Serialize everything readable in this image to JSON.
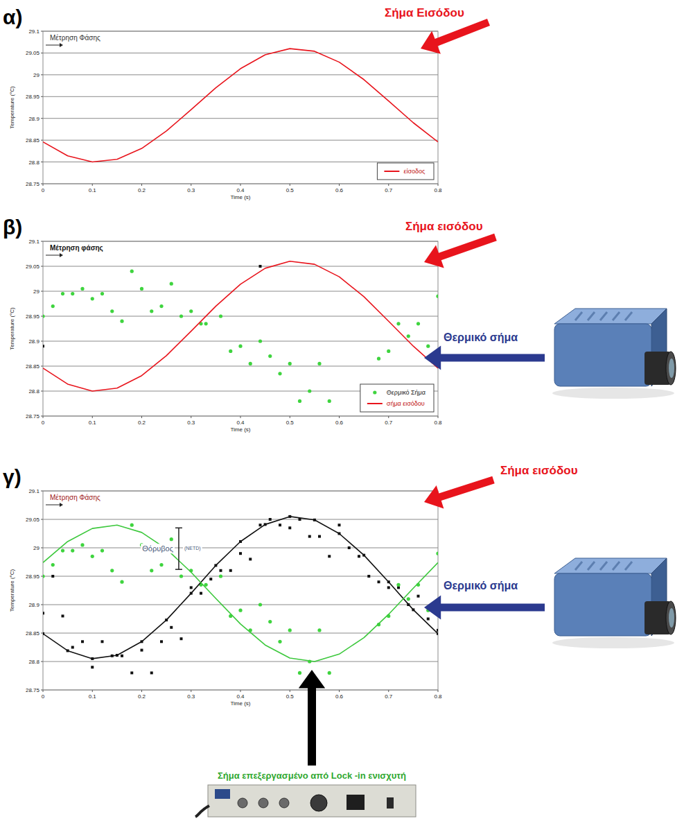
{
  "chart_data": [
    {
      "type": "line",
      "label": "α)",
      "annotations": [
        {
          "text": "Μέτρηση Φάσης",
          "color": "#333333"
        }
      ],
      "callouts": [
        {
          "text": "Σήμα Εισόδου",
          "color": "#e8141c"
        }
      ],
      "x_label": "Time (s)",
      "y_label": "Temperature (°C)",
      "xlim": [
        0,
        0.8
      ],
      "xticks": [
        0,
        0.1,
        0.2,
        0.3,
        0.4,
        0.5,
        0.6,
        0.7,
        0.8
      ],
      "ylim": [
        28.75,
        29.1
      ],
      "yticks": [
        28.75,
        28.8,
        28.85,
        28.9,
        28.95,
        29,
        29.05,
        29.1
      ],
      "grid": true,
      "legend": "lower right",
      "series": [
        {
          "name": "είσοδος",
          "type": "line",
          "color": "#e8141c",
          "x": [
            0,
            0.05,
            0.1,
            0.15,
            0.2,
            0.25,
            0.3,
            0.35,
            0.4,
            0.45,
            0.5,
            0.55,
            0.6,
            0.65,
            0.7,
            0.75,
            0.8
          ],
          "values": [
            28.846,
            28.814,
            28.8,
            28.806,
            28.831,
            28.871,
            28.92,
            28.97,
            29.014,
            29.046,
            29.06,
            29.054,
            29.029,
            28.989,
            28.94,
            28.89,
            28.846
          ]
        }
      ]
    },
    {
      "type": "scatter",
      "label": "β)",
      "annotations": [
        {
          "text": "Μέτρηση φάσης",
          "color": "#111111"
        }
      ],
      "callouts": [
        {
          "text": "Σήμα εισόδου",
          "color": "#e8141c"
        },
        {
          "text": "Θερμικό σήμα",
          "color": "#2b3a8f"
        }
      ],
      "x_label": "Time (s)",
      "y_label": "Temperature (°C)",
      "xlim": [
        0,
        0.8
      ],
      "xticks": [
        0,
        0.1,
        0.2,
        0.3,
        0.4,
        0.5,
        0.6,
        0.7,
        0.8
      ],
      "ylim": [
        28.75,
        29.1
      ],
      "yticks": [
        28.75,
        28.8,
        28.85,
        28.9,
        28.95,
        29,
        29.05,
        29.1
      ],
      "grid": true,
      "legend": "lower right",
      "series": [
        {
          "name": "Θερμικό Σήμα",
          "type": "scatter",
          "marker": "circle",
          "color": "#3fd43f",
          "x": [
            0,
            0.02,
            0.04,
            0.06,
            0.08,
            0.1,
            0.12,
            0.14,
            0.16,
            0.18,
            0.2,
            0.22,
            0.24,
            0.26,
            0.28,
            0.3,
            0.32,
            0.33,
            0.36,
            0.38,
            0.4,
            0.42,
            0.44,
            0.46,
            0.48,
            0.5,
            0.52,
            0.54,
            0.56,
            0.58,
            0.68,
            0.7,
            0.72,
            0.74,
            0.76,
            0.78,
            0.8
          ],
          "values": [
            28.95,
            28.97,
            28.995,
            28.995,
            29.005,
            28.985,
            28.995,
            28.96,
            28.94,
            29.04,
            29.005,
            28.96,
            28.97,
            29.015,
            28.95,
            28.96,
            28.935,
            28.935,
            28.95,
            28.88,
            28.89,
            28.855,
            28.9,
            28.87,
            28.835,
            28.855,
            28.78,
            28.8,
            28.855,
            28.78,
            28.865,
            28.88,
            28.935,
            28.91,
            28.935,
            28.89,
            28.99
          ]
        },
        {
          "name": "σήμα εισόδου",
          "type": "line",
          "color": "#e8141c",
          "x": [
            0,
            0.05,
            0.1,
            0.15,
            0.2,
            0.25,
            0.3,
            0.35,
            0.4,
            0.45,
            0.5,
            0.55,
            0.6,
            0.65,
            0.7,
            0.75,
            0.8
          ],
          "values": [
            28.846,
            28.814,
            28.8,
            28.806,
            28.831,
            28.871,
            28.92,
            28.97,
            29.014,
            29.046,
            29.06,
            29.054,
            29.029,
            28.989,
            28.94,
            28.89,
            28.846
          ]
        },
        {
          "type": "scatter",
          "marker": "square",
          "color": "#111111",
          "x": [
            0,
            0.44,
            0.8
          ],
          "values": [
            28.89,
            29.05,
            28.855
          ]
        }
      ]
    },
    {
      "type": "scatter",
      "label": "γ)",
      "annotations": [
        {
          "text": "Μέτρηση Φάσης",
          "color": "#a01818"
        }
      ],
      "callouts": [
        {
          "text": "Σήμα εισόδου",
          "color": "#e8141c"
        },
        {
          "text": "Θερμικό σήμα",
          "color": "#2b3a8f"
        },
        {
          "text": "Σήμα επεξεργασμένο από Lock -in ενισχυτή",
          "color": "#2fa82f"
        }
      ],
      "noise": {
        "label": "Θόρυβος",
        "sublabel": "(NETD)",
        "x": 0.275,
        "values": [
          28.962,
          29.035
        ]
      },
      "x_label": "Time (s)",
      "y_label": "Temperature (°C)",
      "xlim": [
        0,
        0.8
      ],
      "xticks": [
        0,
        0.1,
        0.2,
        0.3,
        0.4,
        0.5,
        0.6,
        0.7,
        0.8
      ],
      "ylim": [
        28.75,
        29.1
      ],
      "yticks": [
        28.75,
        28.8,
        28.85,
        28.9,
        28.95,
        29,
        29.05,
        29.1
      ],
      "grid": true,
      "series": [
        {
          "type": "scatter",
          "marker": "square",
          "color": "#111111",
          "x": [
            0,
            0.02,
            0.04,
            0.06,
            0.08,
            0.1,
            0.12,
            0.14,
            0.16,
            0.18,
            0.2,
            0.22,
            0.24,
            0.26,
            0.28,
            0.3,
            0.32,
            0.34,
            0.36,
            0.38,
            0.4,
            0.42,
            0.44,
            0.46,
            0.48,
            0.5,
            0.52,
            0.54,
            0.56,
            0.58,
            0.6,
            0.62,
            0.64,
            0.66,
            0.68,
            0.7,
            0.72,
            0.74,
            0.76,
            0.78,
            0.8
          ],
          "values": [
            28.885,
            28.95,
            28.88,
            28.825,
            28.835,
            28.79,
            28.835,
            28.81,
            28.81,
            28.78,
            28.82,
            28.78,
            28.835,
            28.86,
            28.84,
            28.93,
            28.92,
            28.945,
            28.96,
            28.96,
            28.99,
            28.98,
            29.04,
            29.05,
            29.04,
            29.035,
            29.05,
            29.02,
            29.02,
            28.985,
            29.04,
            29,
            28.985,
            28.95,
            28.94,
            28.93,
            28.93,
            28.9,
            28.915,
            28.875,
            28.855
          ]
        },
        {
          "type": "scatter",
          "marker": "circle",
          "color": "#3fd43f",
          "x": [
            0,
            0.02,
            0.04,
            0.06,
            0.08,
            0.1,
            0.12,
            0.14,
            0.16,
            0.18,
            0.2,
            0.22,
            0.24,
            0.26,
            0.28,
            0.3,
            0.32,
            0.33,
            0.36,
            0.38,
            0.4,
            0.42,
            0.44,
            0.46,
            0.48,
            0.5,
            0.52,
            0.54,
            0.56,
            0.58,
            0.68,
            0.7,
            0.72,
            0.74,
            0.76,
            0.78,
            0.8
          ],
          "values": [
            28.95,
            28.97,
            28.995,
            28.995,
            29.005,
            28.985,
            28.995,
            28.96,
            28.94,
            29.04,
            29.005,
            28.96,
            28.97,
            29.015,
            28.95,
            28.96,
            28.935,
            28.935,
            28.95,
            28.88,
            28.89,
            28.855,
            28.9,
            28.87,
            28.835,
            28.855,
            28.78,
            28.8,
            28.855,
            28.78,
            28.865,
            28.88,
            28.935,
            28.91,
            28.935,
            28.89,
            28.99
          ]
        },
        {
          "type": "line",
          "marker": "square",
          "color": "#111111",
          "x": [
            0,
            0.05,
            0.1,
            0.15,
            0.2,
            0.25,
            0.3,
            0.35,
            0.4,
            0.45,
            0.5,
            0.55,
            0.6,
            0.65,
            0.7,
            0.75,
            0.8
          ],
          "values": [
            28.849,
            28.819,
            28.805,
            28.811,
            28.835,
            28.873,
            28.92,
            28.969,
            29.011,
            29.041,
            29.055,
            29.049,
            29.025,
            28.987,
            28.94,
            28.891,
            28.849
          ]
        },
        {
          "type": "line",
          "color": "#3cc83c",
          "x": [
            0,
            0.05,
            0.1,
            0.15,
            0.2,
            0.25,
            0.3,
            0.35,
            0.4,
            0.45,
            0.5,
            0.55,
            0.6,
            0.65,
            0.7,
            0.75,
            0.8
          ],
          "values": [
            28.974,
            29.011,
            29.034,
            29.04,
            29.027,
            28.998,
            28.957,
            28.911,
            28.866,
            28.829,
            28.806,
            28.8,
            28.813,
            28.842,
            28.883,
            28.929,
            28.974
          ]
        }
      ]
    }
  ]
}
